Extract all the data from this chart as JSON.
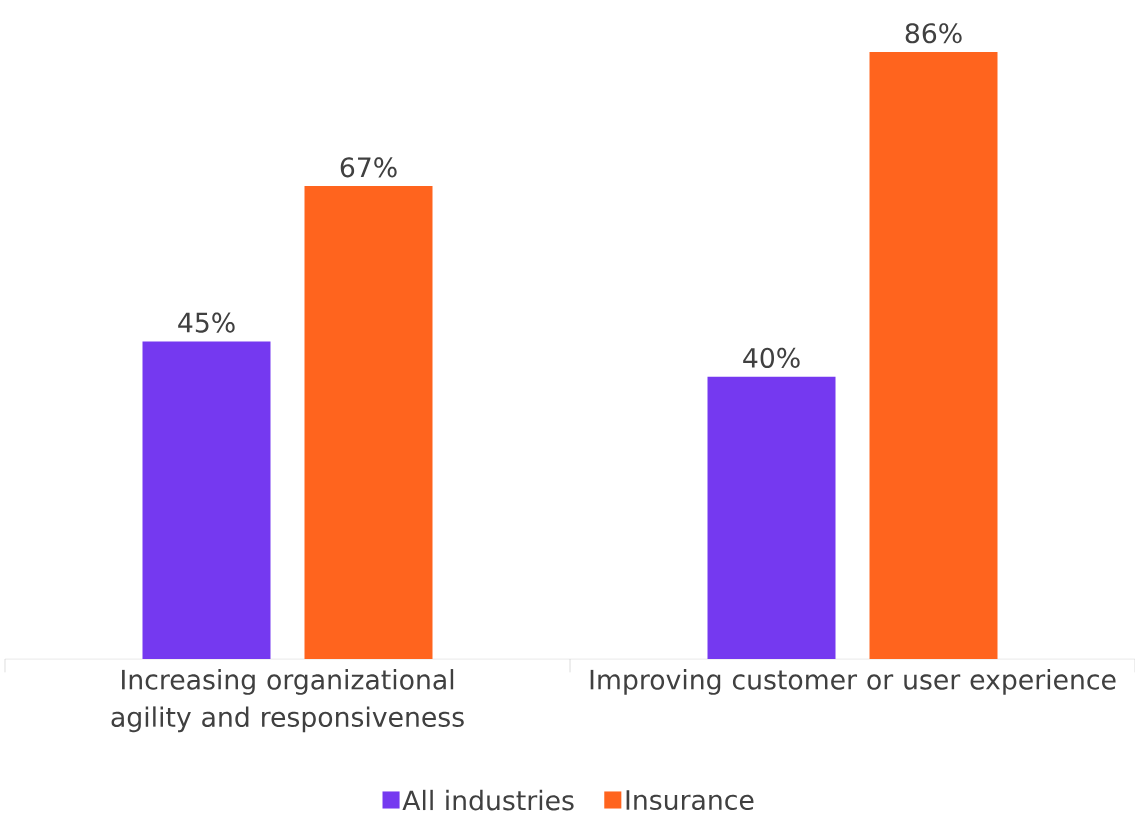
{
  "chart_data": {
    "type": "bar",
    "categories": [
      "Increasing organizational agility and responsiveness",
      "Improving customer or user experience"
    ],
    "series": [
      {
        "name": "All industries",
        "color": "#7539f0",
        "values": [
          45,
          40
        ],
        "value_labels": [
          "45%",
          "40%"
        ]
      },
      {
        "name": "Insurance",
        "color": "#ff641e",
        "values": [
          67,
          86
        ],
        "value_labels": [
          "67%",
          "86%"
        ]
      }
    ],
    "legend": "bottom"
  }
}
